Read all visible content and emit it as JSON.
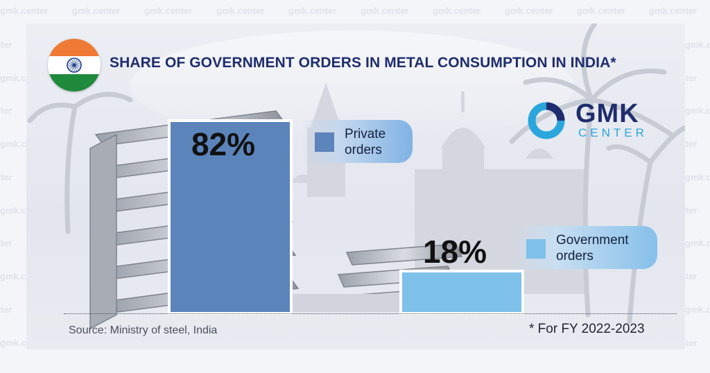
{
  "title": "SHARE OF GOVERNMENT ORDERS IN METAL CONSUMPTION IN INDIA*",
  "watermark_text": "gmk.center",
  "logo": {
    "line1": "GMK",
    "line2": "CENTER"
  },
  "source": "Source: Ministry of steel, India",
  "footnote": "* For FY 2022-2023",
  "colors": {
    "private": "#5b84ba",
    "government": "#7dc1ea",
    "title": "#1f2d6e",
    "logo_ring": "#2aa6dc"
  },
  "icons": [
    "india-flag-icon",
    "ashoka-chakra-icon",
    "gmk-logo-ring-icon"
  ],
  "chart_data": {
    "type": "bar",
    "title": "SHARE OF GOVERNMENT ORDERS IN METAL CONSUMPTION IN INDIA*",
    "categories": [
      "Private orders",
      "Government orders"
    ],
    "values": [
      82,
      18
    ],
    "value_labels": [
      "82%",
      "18%"
    ],
    "unit": "%",
    "ylim": [
      0,
      82
    ],
    "grid": false,
    "legend_position": "right of each bar",
    "legend": [
      {
        "label": "Private orders",
        "color": "#5b84ba"
      },
      {
        "label": "Government orders",
        "color": "#7dc1ea"
      }
    ]
  }
}
